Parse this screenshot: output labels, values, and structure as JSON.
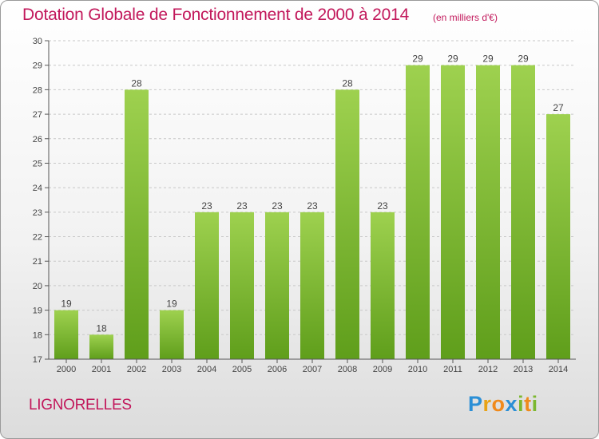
{
  "header": {
    "title": "Dotation Globale de Fonctionnement de 2000 à 2014",
    "unit": "(en milliers d'€)"
  },
  "footer": {
    "commune": "LIGNORELLES",
    "logo": "Proxiti"
  },
  "colors": {
    "title": "#c2185b",
    "bar_top": "#9ed14f",
    "bar_bottom": "#5f9e1b",
    "axis": "#555555"
  },
  "chart_data": {
    "type": "bar",
    "title": "Dotation Globale de Fonctionnement de 2000 à 2014",
    "subtitle": "(en milliers d'€)",
    "xlabel": "",
    "ylabel": "",
    "categories": [
      "2000",
      "2001",
      "2002",
      "2003",
      "2004",
      "2005",
      "2006",
      "2007",
      "2008",
      "2009",
      "2010",
      "2011",
      "2012",
      "2013",
      "2014"
    ],
    "values": [
      19,
      18,
      28,
      19,
      23,
      23,
      23,
      23,
      28,
      23,
      29,
      29,
      29,
      29,
      27
    ],
    "ylim": [
      17,
      30
    ],
    "yticks": [
      17,
      18,
      19,
      20,
      21,
      22,
      23,
      24,
      25,
      26,
      27,
      28,
      29,
      30
    ],
    "grid": "horizontal dashed",
    "legend": "none"
  }
}
